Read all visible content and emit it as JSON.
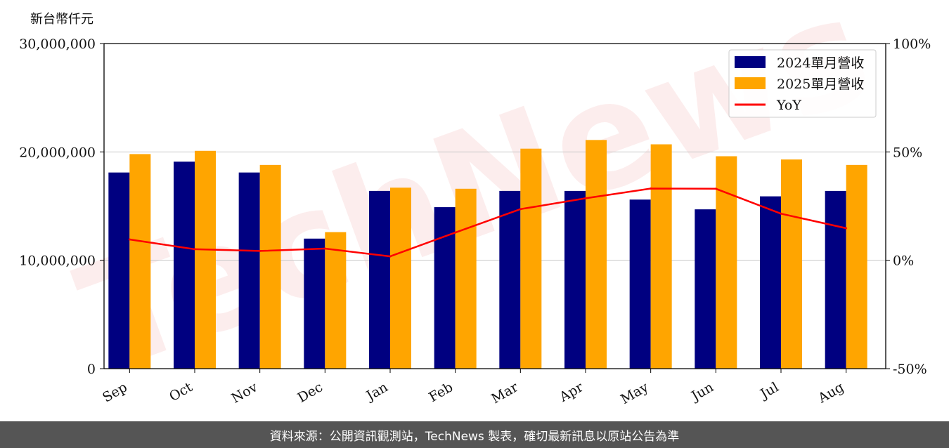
{
  "chart_data": {
    "type": "bar",
    "unit_label": "新台幣仟元",
    "categories": [
      "Sep",
      "Oct",
      "Nov",
      "Dec",
      "Jan",
      "Feb",
      "Mar",
      "Apr",
      "May",
      "Jun",
      "Jul",
      "Aug"
    ],
    "series": [
      {
        "name": "2024單月營收",
        "type": "bar",
        "axis": "left",
        "color": "#000080",
        "values": [
          18100000,
          19100000,
          18100000,
          12000000,
          16400000,
          14900000,
          16400000,
          16400000,
          15600000,
          14700000,
          15900000,
          16400000
        ]
      },
      {
        "name": "2025單月營收",
        "type": "bar",
        "axis": "left",
        "color": "#ffa500",
        "values": [
          19800000,
          20100000,
          18800000,
          12600000,
          16700000,
          16600000,
          20300000,
          21100000,
          20700000,
          19600000,
          19300000,
          18800000
        ]
      },
      {
        "name": "YoY",
        "type": "line",
        "axis": "right",
        "color": "#ff0000",
        "values": [
          9.6,
          5.1,
          4.3,
          5.4,
          1.8,
          12.8,
          23.6,
          28.6,
          33.1,
          33.0,
          21.5,
          14.8
        ]
      }
    ],
    "ylim": [
      0,
      30000000
    ],
    "y_ticks": [
      "0",
      "10,000,000",
      "20,000,000",
      "30,000,000"
    ],
    "y_tick_values": [
      0,
      10000000,
      20000000,
      30000000
    ],
    "y2lim": [
      -50,
      100
    ],
    "y2_ticks": [
      "-50%",
      "0%",
      "50%",
      "100%"
    ],
    "y2_tick_values": [
      -50,
      0,
      50,
      100
    ],
    "grid": "horizontal",
    "legend_position": "top-right",
    "watermark": "TechNews"
  },
  "footer": {
    "source_text": "資料來源：公開資訊觀測站，TechNews 製表，確切最新訊息以原站公告為準"
  }
}
